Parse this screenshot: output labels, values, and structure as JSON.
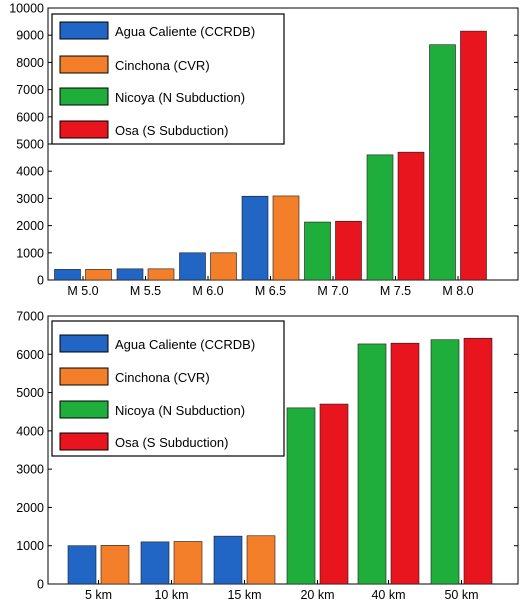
{
  "chart_data": [
    {
      "type": "bar",
      "title": "",
      "xlabel": "",
      "ylabel": "",
      "categories": [
        "M 5.0",
        "M 5.5",
        "M 6.0",
        "M 6.5",
        "M 7.0",
        "M 7.5",
        "M 8.0"
      ],
      "ylim": [
        0,
        10000
      ],
      "yticks": [
        0,
        1000,
        2000,
        3000,
        4000,
        5000,
        6000,
        7000,
        8000,
        9000,
        10000
      ],
      "grid": false,
      "legend_position": "top-left",
      "legend": [
        {
          "name": "Agua Caliente (CCRDB)",
          "color": "#2166c4"
        },
        {
          "name": "Cinchona (CVR)",
          "color": "#f47f2a"
        },
        {
          "name": "Nicoya (N Subduction)",
          "color": "#1fae3c"
        },
        {
          "name": "Osa (S Subduction)",
          "color": "#e8141e"
        }
      ],
      "bars": [
        {
          "category": "M 5.0",
          "value": 390,
          "color": "#2166c4"
        },
        {
          "category": "M 5.0",
          "value": 390,
          "color": "#f47f2a"
        },
        {
          "category": "M 5.5",
          "value": 410,
          "color": "#2166c4"
        },
        {
          "category": "M 5.5",
          "value": 410,
          "color": "#f47f2a"
        },
        {
          "category": "M 6.0",
          "value": 1000,
          "color": "#2166c4"
        },
        {
          "category": "M 6.0",
          "value": 1000,
          "color": "#f47f2a"
        },
        {
          "category": "M 6.5",
          "value": 3080,
          "color": "#2166c4"
        },
        {
          "category": "M 6.5",
          "value": 3090,
          "color": "#f47f2a"
        },
        {
          "category": "M 7.0",
          "value": 2130,
          "color": "#1fae3c"
        },
        {
          "category": "M 7.0",
          "value": 2160,
          "color": "#e8141e"
        },
        {
          "category": "M 7.5",
          "value": 4600,
          "color": "#1fae3c"
        },
        {
          "category": "M 7.5",
          "value": 4700,
          "color": "#e8141e"
        },
        {
          "category": "M 8.0",
          "value": 8650,
          "color": "#1fae3c"
        },
        {
          "category": "M 8.0",
          "value": 9150,
          "color": "#e8141e"
        }
      ]
    },
    {
      "type": "bar",
      "title": "",
      "xlabel": "",
      "ylabel": "",
      "categories": [
        "5 km",
        "10 km",
        "15 km",
        "20 km",
        "40 km",
        "50 km"
      ],
      "ylim": [
        0,
        7000
      ],
      "yticks": [
        0,
        1000,
        2000,
        3000,
        4000,
        5000,
        6000,
        7000
      ],
      "grid": false,
      "legend_position": "top-left",
      "legend": [
        {
          "name": "Agua Caliente (CCRDB)",
          "color": "#2166c4"
        },
        {
          "name": "Cinchona (CVR)",
          "color": "#f47f2a"
        },
        {
          "name": "Nicoya (N Subduction)",
          "color": "#1fae3c"
        },
        {
          "name": "Osa (S Subduction)",
          "color": "#e8141e"
        }
      ],
      "bars": [
        {
          "category": "5 km",
          "value": 1000,
          "color": "#2166c4"
        },
        {
          "category": "5 km",
          "value": 1010,
          "color": "#f47f2a"
        },
        {
          "category": "10 km",
          "value": 1100,
          "color": "#2166c4"
        },
        {
          "category": "10 km",
          "value": 1110,
          "color": "#f47f2a"
        },
        {
          "category": "15 km",
          "value": 1250,
          "color": "#2166c4"
        },
        {
          "category": "15 km",
          "value": 1260,
          "color": "#f47f2a"
        },
        {
          "category": "20 km",
          "value": 4600,
          "color": "#1fae3c"
        },
        {
          "category": "20 km",
          "value": 4700,
          "color": "#e8141e"
        },
        {
          "category": "40 km",
          "value": 6270,
          "color": "#1fae3c"
        },
        {
          "category": "40 km",
          "value": 6290,
          "color": "#e8141e"
        },
        {
          "category": "50 km",
          "value": 6380,
          "color": "#1fae3c"
        },
        {
          "category": "50 km",
          "value": 6420,
          "color": "#e8141e"
        }
      ]
    }
  ]
}
